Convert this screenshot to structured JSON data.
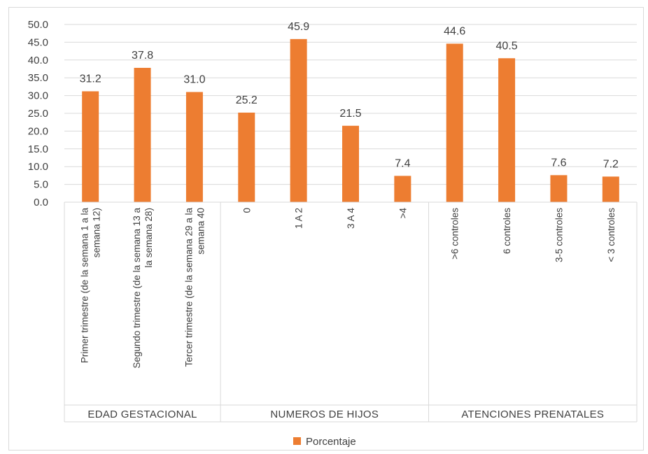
{
  "chart_data": {
    "type": "bar",
    "series": [
      {
        "name": "Porcentaje",
        "values": [
          31.2,
          37.8,
          31.0,
          25.2,
          45.9,
          21.5,
          7.4,
          44.6,
          40.5,
          7.6,
          7.2
        ]
      }
    ],
    "categories": [
      [
        "Primer trimestre (de la semana 1 a la",
        "semana 12)"
      ],
      [
        "Segundo trimestre (de la semana 13 a",
        "la semana 28)"
      ],
      [
        "Tercer trimestre (de la semana 29 a la",
        "semana 40"
      ],
      [
        "0"
      ],
      [
        "1 A 2"
      ],
      [
        "3 A 4"
      ],
      [
        ">4"
      ],
      [
        ">6 controles"
      ],
      [
        "6 controles"
      ],
      [
        "3-5 controles"
      ],
      [
        "< 3 controles"
      ]
    ],
    "groups": [
      {
        "label": "EDAD GESTACIONAL",
        "count": 3
      },
      {
        "label": "NUMEROS DE HIJOS",
        "count": 4
      },
      {
        "label": "ATENCIONES PRENATALES",
        "count": 4
      }
    ],
    "data_labels": [
      "31.2",
      "37.8",
      "31.0",
      "25.2",
      "45.9",
      "21.5",
      "7.4",
      "44.6",
      "40.5",
      "7.6",
      "7.2"
    ],
    "yticks": [
      "0.0",
      "5.0",
      "10.0",
      "15.0",
      "20.0",
      "25.0",
      "30.0",
      "35.0",
      "40.0",
      "45.0",
      "50.0"
    ],
    "ylim": [
      0,
      50
    ],
    "grid": true,
    "legend": "bottom",
    "colors": {
      "bar": "#ED7D31",
      "grid": "#d9d9d9",
      "text": "#404040"
    }
  }
}
